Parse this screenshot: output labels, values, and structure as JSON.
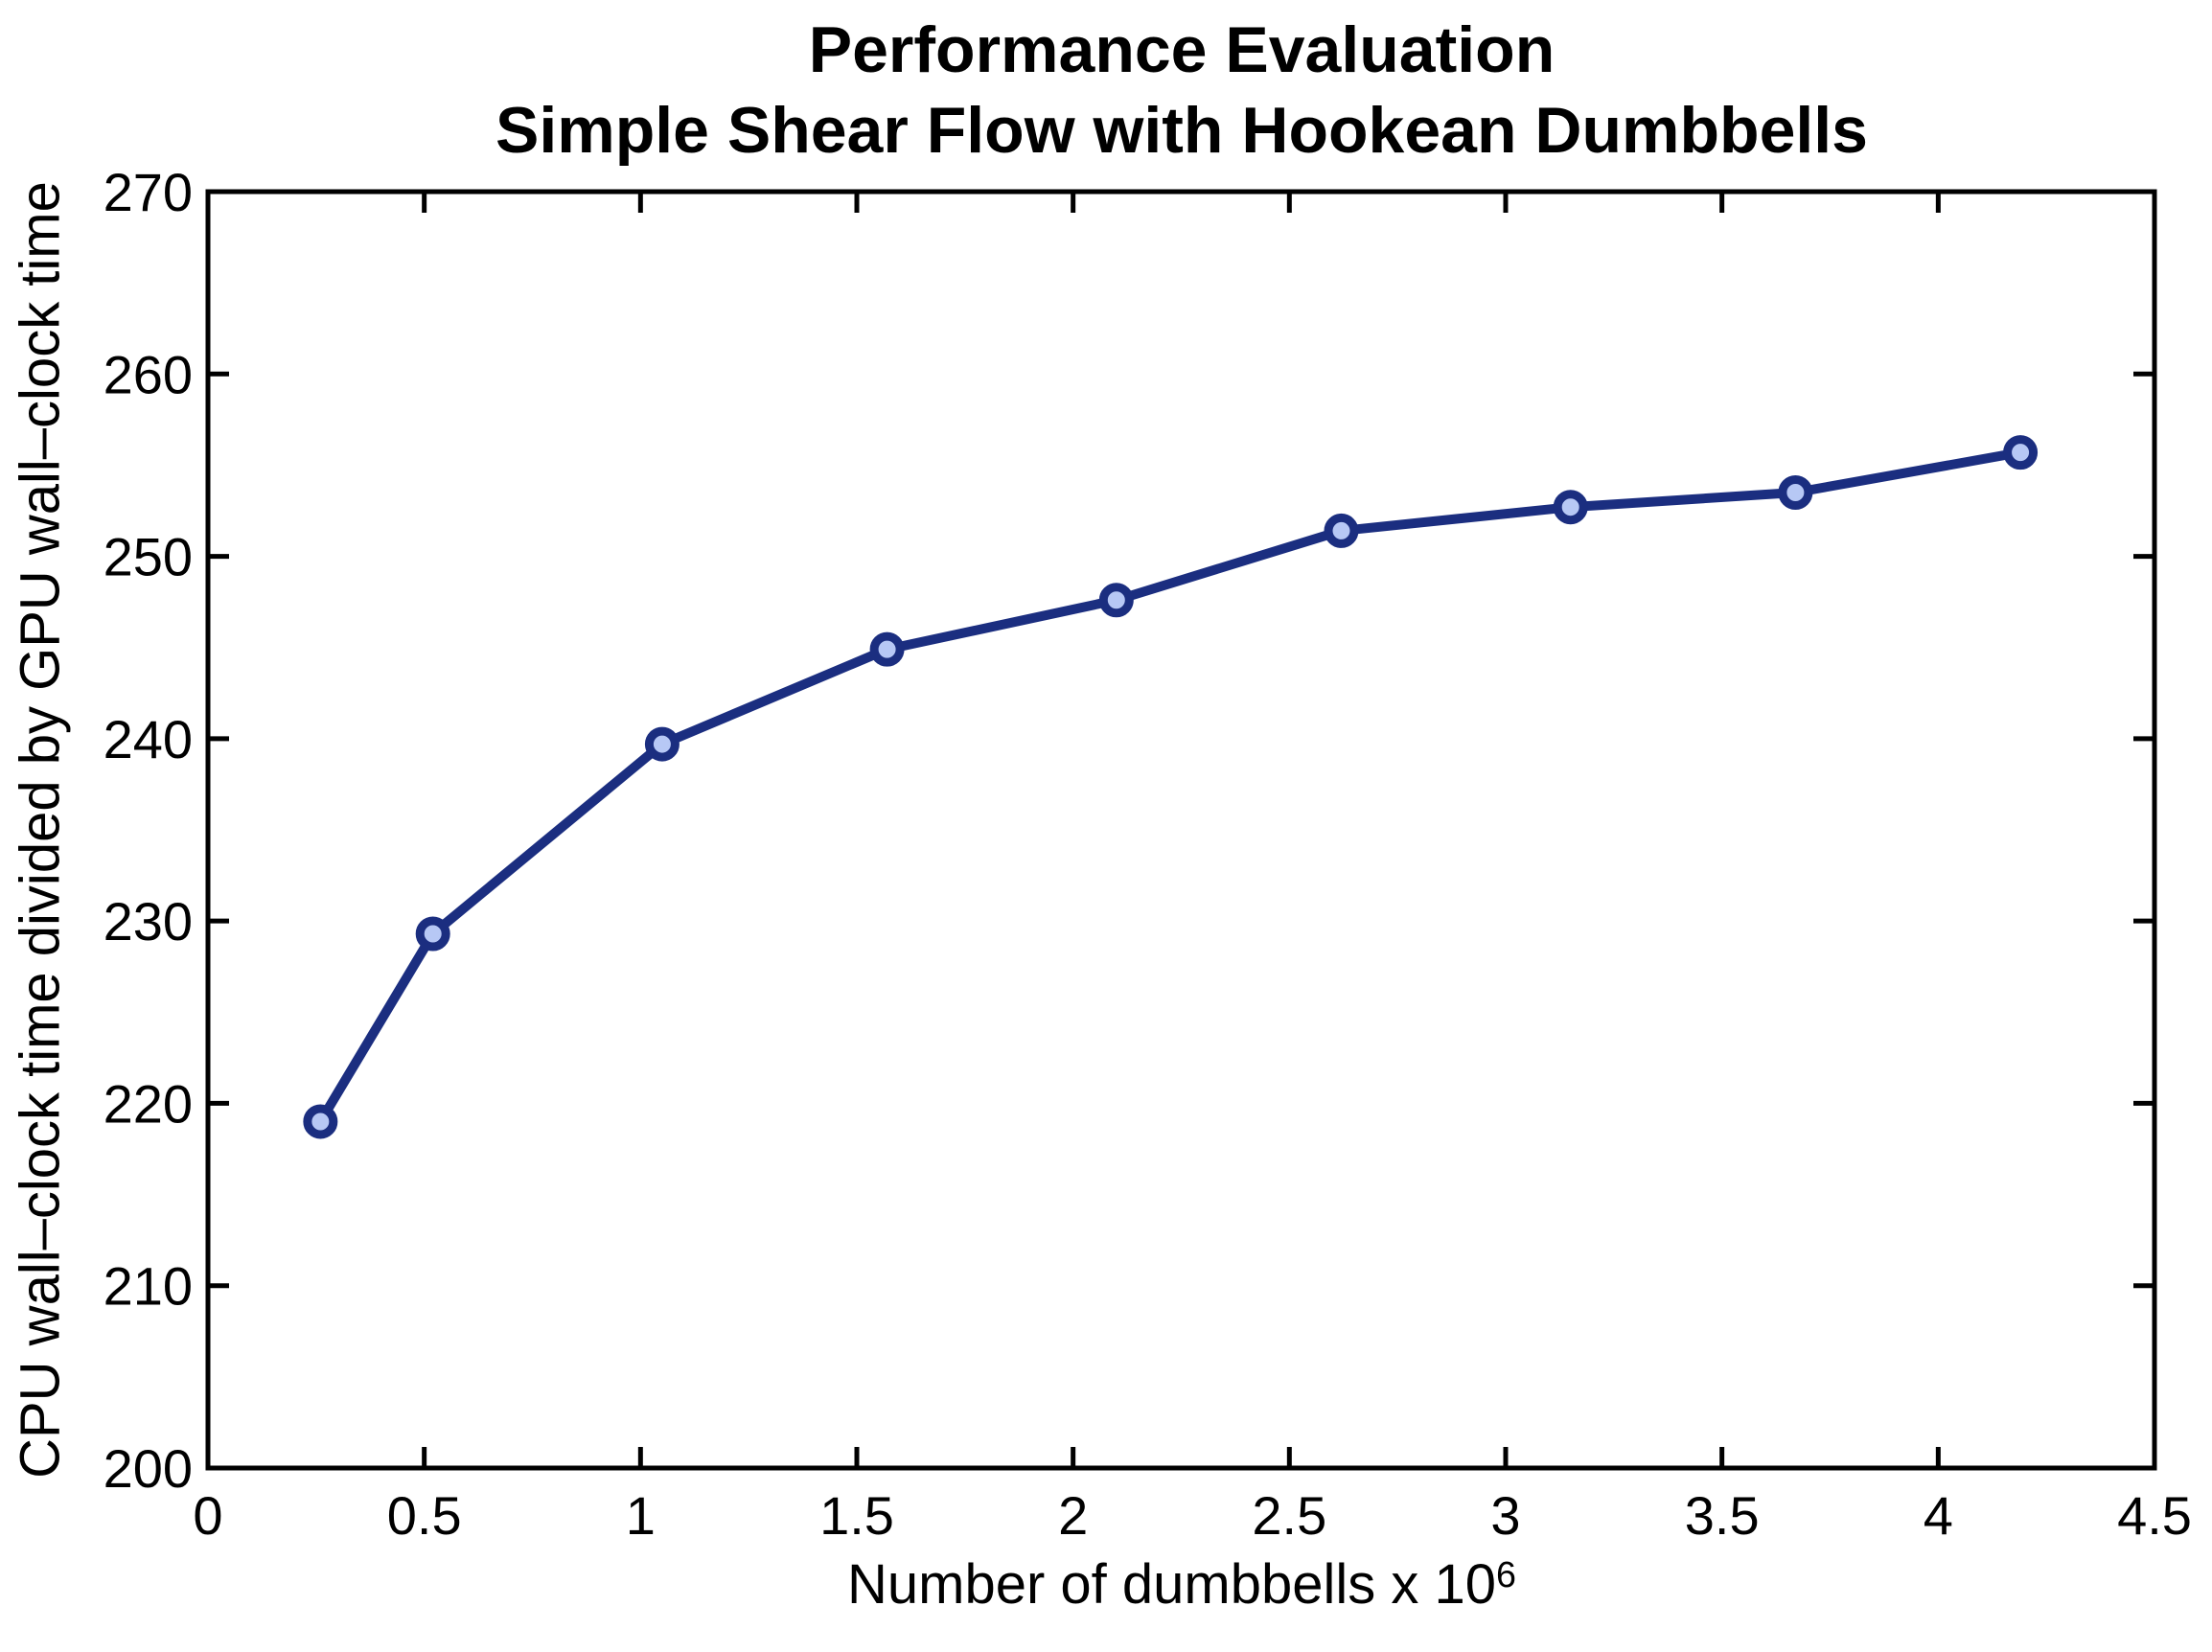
{
  "figure": {
    "title_line1": "Performance Evaluation",
    "title_line2": "Simple Shear Flow with Hookean Dumbbells",
    "xlabel_base": "Number of dumbbells x 10",
    "xlabel_exponent": "6",
    "ylabel": "CPU wall–clock time divided by GPU wall–clock time"
  },
  "colors": {
    "line": "#1b2e80",
    "marker_edge": "#1b2e80",
    "marker_face": "#b7c8f5",
    "axis": "#000000",
    "text": "#000000",
    "background": "#ffffff"
  },
  "chart_data": {
    "type": "line",
    "title": "Performance Evaluation",
    "subtitle": "Simple Shear Flow with Hookean Dumbbells",
    "xlabel": "Number of dumbbells x 10^6",
    "ylabel": "CPU wall–clock time divided by GPU wall–clock time",
    "x": [
      0.26,
      0.52,
      1.05,
      1.57,
      2.1,
      2.62,
      3.15,
      3.67,
      4.19
    ],
    "y": [
      219.0,
      229.3,
      239.7,
      244.9,
      247.6,
      251.4,
      252.7,
      253.5,
      255.7
    ],
    "xlim": [
      0,
      4.5
    ],
    "ylim": [
      200,
      270
    ],
    "x_ticks": [
      0,
      0.5,
      1,
      1.5,
      2,
      2.5,
      3,
      3.5,
      4,
      4.5
    ],
    "x_tick_labels": [
      "0",
      "0.5",
      "1",
      "1.5",
      "2",
      "2.5",
      "3",
      "3.5",
      "4",
      "4.5"
    ],
    "y_ticks": [
      200,
      210,
      220,
      230,
      240,
      250,
      260,
      270
    ],
    "y_tick_labels": [
      "200",
      "210",
      "220",
      "230",
      "240",
      "250",
      "260",
      "270"
    ],
    "grid": false,
    "legend": false,
    "marker": "circle"
  }
}
